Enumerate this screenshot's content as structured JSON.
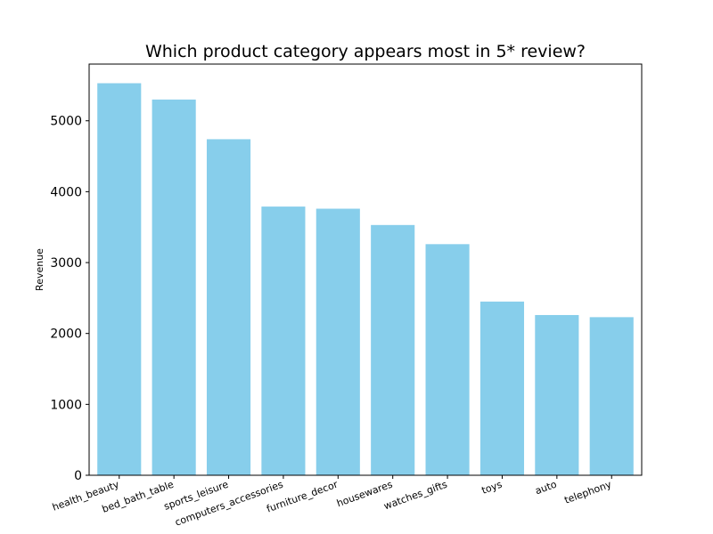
{
  "chart_data": {
    "type": "bar",
    "title": "Which product category appears most in 5* review?",
    "xlabel": "",
    "ylabel": "Revenue",
    "categories": [
      "health_beauty",
      "bed_bath_table",
      "sports_leisure",
      "computers_accessories",
      "furniture_decor",
      "housewares",
      "watches_gifts",
      "toys",
      "auto",
      "telephony"
    ],
    "values": [
      5530,
      5300,
      4740,
      3790,
      3760,
      3530,
      3260,
      2450,
      2260,
      2230
    ],
    "ylim": [
      0,
      5800
    ],
    "yticks": [
      "0",
      "1000",
      "2000",
      "3000",
      "4000",
      "5000"
    ],
    "bar_color": "#87ceeb",
    "grid": false,
    "legend": "none"
  }
}
